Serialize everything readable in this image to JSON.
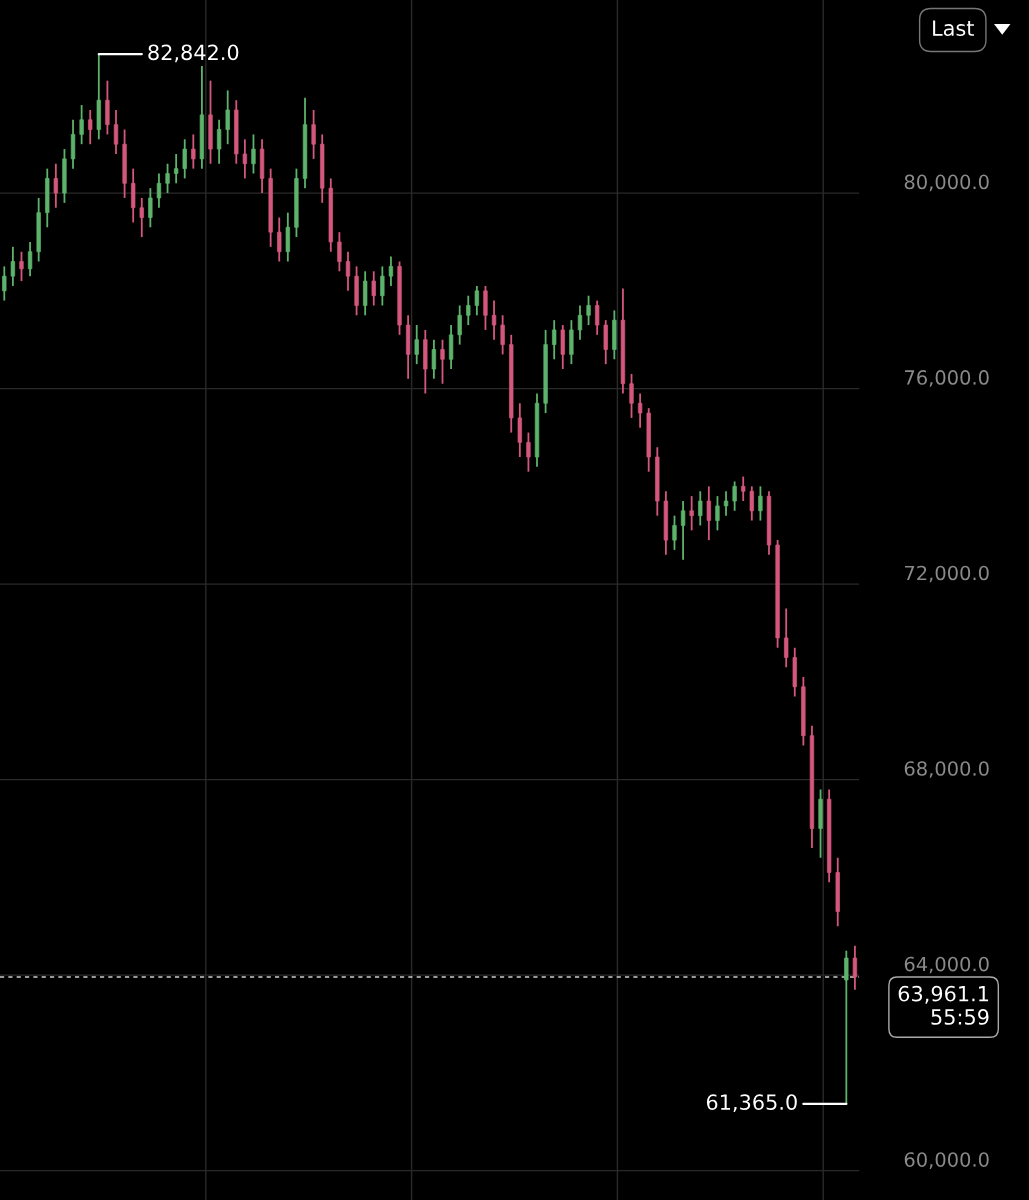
{
  "chart_data": {
    "type": "candlestick",
    "categories": [
      null,
      null,
      null,
      null,
      null,
      null,
      null,
      null,
      null,
      null,
      null,
      null,
      null,
      null,
      null,
      null,
      null,
      null,
      null,
      null,
      null,
      null,
      null,
      null,
      null,
      null,
      null,
      null,
      null,
      null,
      null,
      null,
      null,
      null,
      null,
      null,
      null,
      null,
      null,
      null,
      null,
      null,
      null,
      null,
      null,
      null,
      null,
      null,
      null,
      null,
      null,
      null,
      null,
      null,
      null,
      null,
      null,
      null,
      null,
      null,
      null,
      null,
      null,
      null,
      null,
      null,
      null,
      null,
      null,
      null,
      null,
      null,
      null,
      null,
      null,
      null,
      null,
      null,
      null,
      null,
      null,
      null,
      null,
      null,
      null,
      null,
      null,
      null,
      null,
      null,
      null,
      null,
      null,
      null,
      null,
      null,
      null,
      null,
      null,
      null
    ],
    "ohlc": [
      [
        78000,
        78500,
        77800,
        78300
      ],
      [
        78300,
        78900,
        78100,
        78600
      ],
      [
        78600,
        78800,
        78200,
        78450
      ],
      [
        78450,
        79000,
        78300,
        78800
      ],
      [
        78800,
        79900,
        78600,
        79600
      ],
      [
        79600,
        80500,
        79300,
        80300
      ],
      [
        80300,
        80600,
        79700,
        80000
      ],
      [
        80000,
        80900,
        79800,
        80700
      ],
      [
        80700,
        81500,
        80500,
        81200
      ],
      [
        81200,
        81800,
        81000,
        81500
      ],
      [
        81500,
        81700,
        81000,
        81300
      ],
      [
        81300,
        82842,
        81100,
        81900
      ],
      [
        81900,
        82300,
        81200,
        81400
      ],
      [
        81400,
        81700,
        80800,
        81000
      ],
      [
        81000,
        81300,
        79900,
        80200
      ],
      [
        80200,
        80500,
        79400,
        79700
      ],
      [
        79700,
        79900,
        79100,
        79500
      ],
      [
        79500,
        80100,
        79300,
        79900
      ],
      [
        79900,
        80400,
        79700,
        80200
      ],
      [
        80200,
        80600,
        80000,
        80400
      ],
      [
        80400,
        80800,
        80200,
        80500
      ],
      [
        80500,
        81100,
        80300,
        80900
      ],
      [
        80900,
        81200,
        80500,
        80700
      ],
      [
        80700,
        82600,
        80500,
        81600
      ],
      [
        81600,
        82300,
        80600,
        80900
      ],
      [
        80900,
        81500,
        80600,
        81300
      ],
      [
        81300,
        82100,
        81000,
        81700
      ],
      [
        81700,
        81900,
        80600,
        80800
      ],
      [
        80800,
        81100,
        80300,
        80600
      ],
      [
        80600,
        81200,
        80400,
        80900
      ],
      [
        80900,
        81100,
        80000,
        80300
      ],
      [
        80300,
        80500,
        78900,
        79200
      ],
      [
        79200,
        79500,
        78600,
        78800
      ],
      [
        78800,
        79600,
        78600,
        79300
      ],
      [
        79300,
        80500,
        79100,
        80300
      ],
      [
        80300,
        81950,
        80100,
        81400
      ],
      [
        81400,
        81700,
        80700,
        81000
      ],
      [
        81000,
        81200,
        79800,
        80100
      ],
      [
        80100,
        80300,
        78800,
        79000
      ],
      [
        79000,
        79200,
        78400,
        78600
      ],
      [
        78600,
        78800,
        78000,
        78300
      ],
      [
        78300,
        78500,
        77500,
        77700
      ],
      [
        77700,
        78400,
        77500,
        78200
      ],
      [
        78200,
        78400,
        77700,
        77900
      ],
      [
        77900,
        78500,
        77700,
        78300
      ],
      [
        78300,
        78700,
        78100,
        78500
      ],
      [
        78500,
        78600,
        77100,
        77300
      ],
      [
        77300,
        77500,
        76200,
        76700
      ],
      [
        76700,
        77300,
        76500,
        77000
      ],
      [
        77000,
        77200,
        75900,
        76400
      ],
      [
        76400,
        77000,
        76200,
        76800
      ],
      [
        76800,
        77000,
        76100,
        76600
      ],
      [
        76600,
        77300,
        76400,
        77100
      ],
      [
        77100,
        77700,
        76900,
        77500
      ],
      [
        77500,
        77900,
        77300,
        77700
      ],
      [
        77700,
        78100,
        77500,
        78000
      ],
      [
        78000,
        78100,
        77200,
        77500
      ],
      [
        77500,
        77800,
        77000,
        77300
      ],
      [
        77300,
        77500,
        76700,
        76900
      ],
      [
        76900,
        77100,
        75100,
        75400
      ],
      [
        75400,
        75700,
        74600,
        74900
      ],
      [
        74900,
        75100,
        74300,
        74600
      ],
      [
        74600,
        75900,
        74400,
        75700
      ],
      [
        75700,
        77200,
        75500,
        76900
      ],
      [
        76900,
        77400,
        76600,
        77200
      ],
      [
        77200,
        77300,
        76400,
        76700
      ],
      [
        76700,
        77400,
        76500,
        77200
      ],
      [
        77200,
        77700,
        77000,
        77500
      ],
      [
        77500,
        77900,
        77300,
        77700
      ],
      [
        77700,
        77800,
        77100,
        77300
      ],
      [
        77300,
        77400,
        76500,
        76800
      ],
      [
        76800,
        77600,
        76600,
        77400
      ],
      [
        77400,
        78050,
        75900,
        76100
      ],
      [
        76100,
        76300,
        75400,
        75700
      ],
      [
        75700,
        75900,
        75200,
        75500
      ],
      [
        75500,
        75600,
        74300,
        74600
      ],
      [
        74600,
        74800,
        73400,
        73700
      ],
      [
        73700,
        73900,
        72600,
        72900
      ],
      [
        72900,
        73400,
        72700,
        73200
      ],
      [
        73200,
        73700,
        72500,
        73500
      ],
      [
        73500,
        73800,
        73100,
        73400
      ],
      [
        73400,
        73900,
        73200,
        73700
      ],
      [
        73700,
        74000,
        72900,
        73300
      ],
      [
        73300,
        73800,
        73100,
        73600
      ],
      [
        73600,
        73900,
        73400,
        73700
      ],
      [
        73700,
        74100,
        73500,
        74000
      ],
      [
        74000,
        74200,
        73700,
        73900
      ],
      [
        73900,
        74000,
        73300,
        73500
      ],
      [
        73500,
        74000,
        73300,
        73800
      ],
      [
        73800,
        73900,
        72600,
        72800
      ],
      [
        72800,
        72900,
        70700,
        70900
      ],
      [
        70900,
        71500,
        70300,
        70500
      ],
      [
        70500,
        70700,
        69700,
        69900
      ],
      [
        69900,
        70100,
        68700,
        68900
      ],
      [
        68900,
        69100,
        66600,
        67000
      ],
      [
        67000,
        67800,
        66400,
        67600
      ],
      [
        67600,
        67800,
        65900,
        66100
      ],
      [
        66100,
        66400,
        65000,
        65300
      ],
      [
        63900,
        64500,
        61365,
        64350
      ],
      [
        64350,
        64600,
        63700,
        63961.1
      ]
    ],
    "colors": [
      "#5db36b",
      "#5db36b",
      "#d4577d",
      "#5db36b",
      "#5db36b",
      "#5db36b",
      "#d4577d",
      "#5db36b",
      "#5db36b",
      "#5db36b",
      "#d4577d",
      "#5db36b",
      "#d4577d",
      "#d4577d",
      "#d4577d",
      "#d4577d",
      "#d4577d",
      "#5db36b",
      "#5db36b",
      "#5db36b",
      "#5db36b",
      "#5db36b",
      "#d4577d",
      "#5db36b",
      "#d4577d",
      "#5db36b",
      "#5db36b",
      "#d4577d",
      "#d4577d",
      "#5db36b",
      "#d4577d",
      "#d4577d",
      "#d4577d",
      "#5db36b",
      "#5db36b",
      "#5db36b",
      "#d4577d",
      "#d4577d",
      "#d4577d",
      "#d4577d",
      "#d4577d",
      "#d4577d",
      "#5db36b",
      "#d4577d",
      "#5db36b",
      "#5db36b",
      "#d4577d",
      "#d4577d",
      "#5db36b",
      "#d4577d",
      "#5db36b",
      "#d4577d",
      "#5db36b",
      "#5db36b",
      "#5db36b",
      "#5db36b",
      "#d4577d",
      "#d4577d",
      "#d4577d",
      "#d4577d",
      "#d4577d",
      "#d4577d",
      "#5db36b",
      "#5db36b",
      "#5db36b",
      "#d4577d",
      "#5db36b",
      "#5db36b",
      "#5db36b",
      "#d4577d",
      "#d4577d",
      "#5db36b",
      "#d4577d",
      "#d4577d",
      "#d4577d",
      "#d4577d",
      "#d4577d",
      "#d4577d",
      "#5db36b",
      "#5db36b",
      "#d4577d",
      "#5db36b",
      "#d4577d",
      "#5db36b",
      "#5db36b",
      "#5db36b",
      "#d4577d",
      "#d4577d",
      "#5db36b",
      "#d4577d",
      "#d4577d",
      "#d4577d",
      "#d4577d",
      "#d4577d",
      "#d4577d",
      "#5db36b",
      "#d4577d",
      "#d4577d",
      "#5db36b",
      "#d4577d"
    ],
    "ylim": [
      59400,
      83950
    ],
    "yticks": [
      {
        "value": 60000,
        "label": "60,000.0"
      },
      {
        "value": 64000,
        "label": "64,000.0"
      },
      {
        "value": 68000,
        "label": "68,000.0"
      },
      {
        "value": 72000,
        "label": "72,000.0"
      },
      {
        "value": 76000,
        "label": "76,000.0"
      },
      {
        "value": 80000,
        "label": "80,000.0"
      }
    ],
    "tick_labels": "y",
    "grid": true,
    "ref_lines": [
      {
        "axis": "y",
        "value": 63961.1,
        "label": "63,961.1",
        "line_style": "dashed",
        "color": "#cccccc"
      }
    ],
    "annotations": [
      "Last",
      "82,842.0",
      "61,365.0",
      "55:59"
    ]
  }
}
